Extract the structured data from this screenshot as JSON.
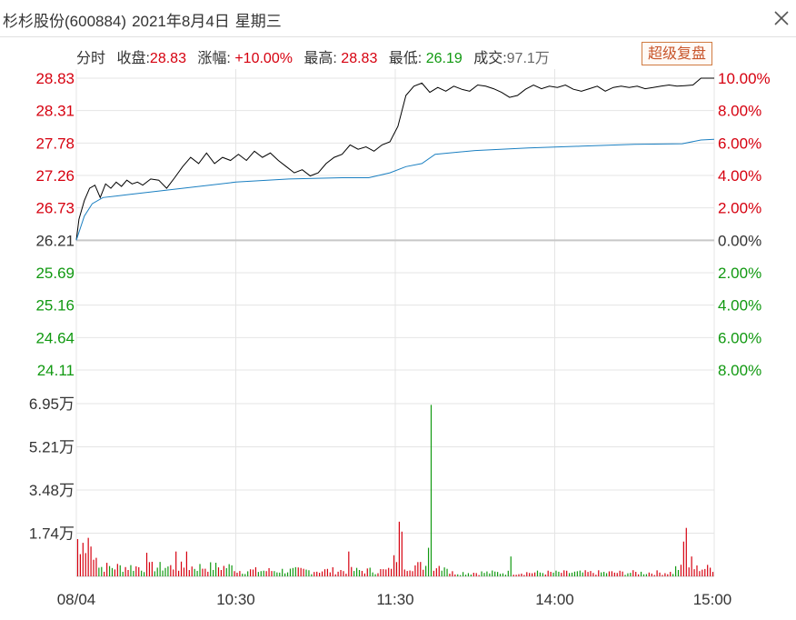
{
  "window": {
    "stock_name": "杉杉股份(600884)",
    "date": "2021年8月4日",
    "weekday": "星期三"
  },
  "info": {
    "mode_label": "分时",
    "close_label": "收盘:",
    "close_value": "28.83",
    "change_label": "涨幅:",
    "change_value": "+10.00%",
    "high_label": "最高:",
    "high_value": "28.83",
    "low_label": "最低:",
    "low_value": "26.19",
    "volume_label": "成交:",
    "volume_value": "97.1万",
    "restore_button": "超级复盘"
  },
  "colors": {
    "up": "#d6000f",
    "down": "#119911",
    "price_line": "#000000",
    "avg_line": "#1a7fc1",
    "grid": "#e4e4e4",
    "zero_line": "#c8c8c8"
  },
  "chart_data": {
    "type": "line",
    "title": "杉杉股份(600884) 分时",
    "x_tick_labels": [
      "08/04",
      "10:30",
      "11:30",
      "14:00",
      "15:00"
    ],
    "price_axis_labels": [
      "28.83",
      "28.31",
      "27.78",
      "27.26",
      "26.73",
      "26.21",
      "25.69",
      "25.16",
      "24.64",
      "24.11"
    ],
    "pct_axis_labels": [
      "10.00%",
      "8.00%",
      "6.00%",
      "4.00%",
      "2.00%",
      "0.00%",
      "2.00%",
      "4.00%",
      "6.00%",
      "8.00%"
    ],
    "volume_axis_labels": [
      "6.95万",
      "5.21万",
      "3.48万",
      "1.74万"
    ],
    "prev_close": 26.21,
    "ylim": [
      24.11,
      28.83
    ],
    "volume_max": 6.95,
    "minutes_total": 240,
    "series": [
      {
        "name": "价格",
        "minutes": [
          0,
          1,
          3,
          5,
          7,
          9,
          11,
          13,
          15,
          17,
          19,
          21,
          23,
          25,
          28,
          31,
          34,
          37,
          40,
          43,
          46,
          49,
          52,
          55,
          58,
          61,
          64,
          67,
          70,
          73,
          76,
          79,
          82,
          85,
          88,
          91,
          94,
          97,
          100,
          103,
          106,
          109,
          112,
          115,
          118,
          121,
          124,
          127,
          130,
          133,
          136,
          139,
          142,
          145,
          148,
          151,
          154,
          157,
          160,
          163,
          166,
          169,
          172,
          175,
          178,
          181,
          184,
          187,
          190,
          193,
          196,
          199,
          202,
          205,
          208,
          211,
          214,
          217,
          220,
          223,
          226,
          229,
          232,
          235,
          238,
          240
        ],
        "values": [
          26.21,
          26.55,
          26.85,
          27.05,
          27.1,
          26.9,
          27.12,
          27.05,
          27.15,
          27.08,
          27.18,
          27.12,
          27.15,
          27.1,
          27.2,
          27.18,
          27.05,
          27.22,
          27.4,
          27.55,
          27.45,
          27.62,
          27.45,
          27.55,
          27.5,
          27.6,
          27.5,
          27.65,
          27.55,
          27.62,
          27.5,
          27.4,
          27.3,
          27.35,
          27.25,
          27.3,
          27.45,
          27.55,
          27.6,
          27.75,
          27.68,
          27.72,
          27.65,
          27.75,
          27.8,
          28.05,
          28.55,
          28.7,
          28.75,
          28.6,
          28.68,
          28.62,
          28.7,
          28.65,
          28.62,
          28.72,
          28.7,
          28.66,
          28.6,
          28.52,
          28.55,
          28.65,
          28.72,
          28.66,
          28.7,
          28.68,
          28.72,
          28.65,
          28.62,
          28.66,
          28.7,
          28.62,
          28.68,
          28.7,
          28.68,
          28.7,
          28.66,
          28.68,
          28.7,
          28.72,
          28.7,
          28.71,
          28.72,
          28.83,
          28.83,
          28.83
        ]
      },
      {
        "name": "均价",
        "minutes": [
          0,
          3,
          6,
          10,
          20,
          30,
          40,
          60,
          80,
          100,
          110,
          118,
          124,
          130,
          135,
          150,
          170,
          190,
          210,
          228,
          235,
          240
        ],
        "values": [
          26.21,
          26.6,
          26.8,
          26.9,
          26.95,
          27.0,
          27.05,
          27.15,
          27.2,
          27.22,
          27.22,
          27.3,
          27.4,
          27.45,
          27.6,
          27.66,
          27.7,
          27.73,
          27.76,
          27.77,
          27.83,
          27.84
        ]
      }
    ],
    "volume": {
      "unit": "万",
      "peaks": [
        {
          "minute": 0,
          "value": 1.5
        },
        {
          "minute": 2,
          "value": 1.35
        },
        {
          "minute": 4,
          "value": 1.55
        },
        {
          "minute": 5,
          "value": 1.2
        },
        {
          "minute": 26,
          "value": 0.95
        },
        {
          "minute": 37,
          "value": 1.0
        },
        {
          "minute": 41,
          "value": 1.0
        },
        {
          "minute": 102,
          "value": 1.0
        },
        {
          "minute": 119,
          "value": 0.85
        },
        {
          "minute": 121,
          "value": 2.2
        },
        {
          "minute": 122,
          "value": 1.8
        },
        {
          "minute": 133,
          "value": 6.9
        },
        {
          "minute": 132,
          "value": 1.15
        },
        {
          "minute": 163,
          "value": 0.8
        },
        {
          "minute": 228,
          "value": 1.4
        },
        {
          "minute": 229,
          "value": 1.95
        },
        {
          "minute": 231,
          "value": 0.8
        }
      ]
    }
  }
}
